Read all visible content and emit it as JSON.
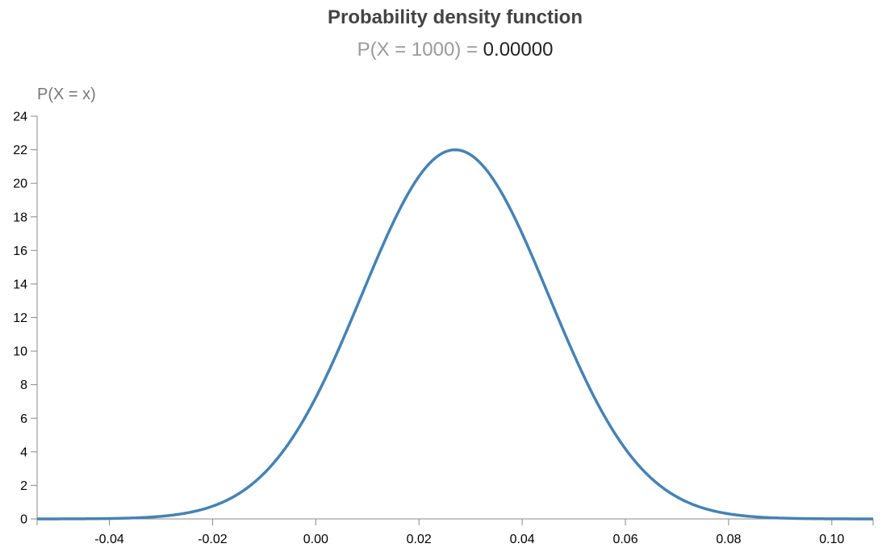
{
  "title": "Probability density function",
  "subtitle": {
    "lhs": "P(X = 1000) =",
    "value": "0.00000"
  },
  "chart_data": {
    "type": "line",
    "title": "Probability density function",
    "ylabel": "P(X = x)",
    "xlabel": "",
    "xlim": [
      -0.054,
      0.108
    ],
    "ylim": [
      0,
      24
    ],
    "xticks": [
      "-0.04",
      "-0.02",
      "0.00",
      "0.02",
      "0.04",
      "0.06",
      "0.08",
      "0.10"
    ],
    "yticks": [
      "0",
      "2",
      "4",
      "6",
      "8",
      "10",
      "12",
      "14",
      "16",
      "18",
      "20",
      "22",
      "24"
    ],
    "grid": false,
    "series": [
      {
        "color": "#4682b4",
        "distribution": "normal",
        "mean": 0.027,
        "sd": 0.0181,
        "x": [
          -0.054,
          -0.04,
          -0.03,
          -0.02,
          -0.01,
          0.0,
          0.01,
          0.02,
          0.027,
          0.03,
          0.04,
          0.05,
          0.06,
          0.07,
          0.08,
          0.09,
          0.1,
          0.108
        ],
        "y": [
          0.0,
          0.1,
          0.3,
          0.8,
          2.5,
          7.0,
          13.8,
          20.5,
          22.0,
          21.7,
          17.7,
          9.7,
          4.2,
          1.3,
          0.4,
          0.1,
          0.0,
          0.0
        ]
      }
    ]
  }
}
